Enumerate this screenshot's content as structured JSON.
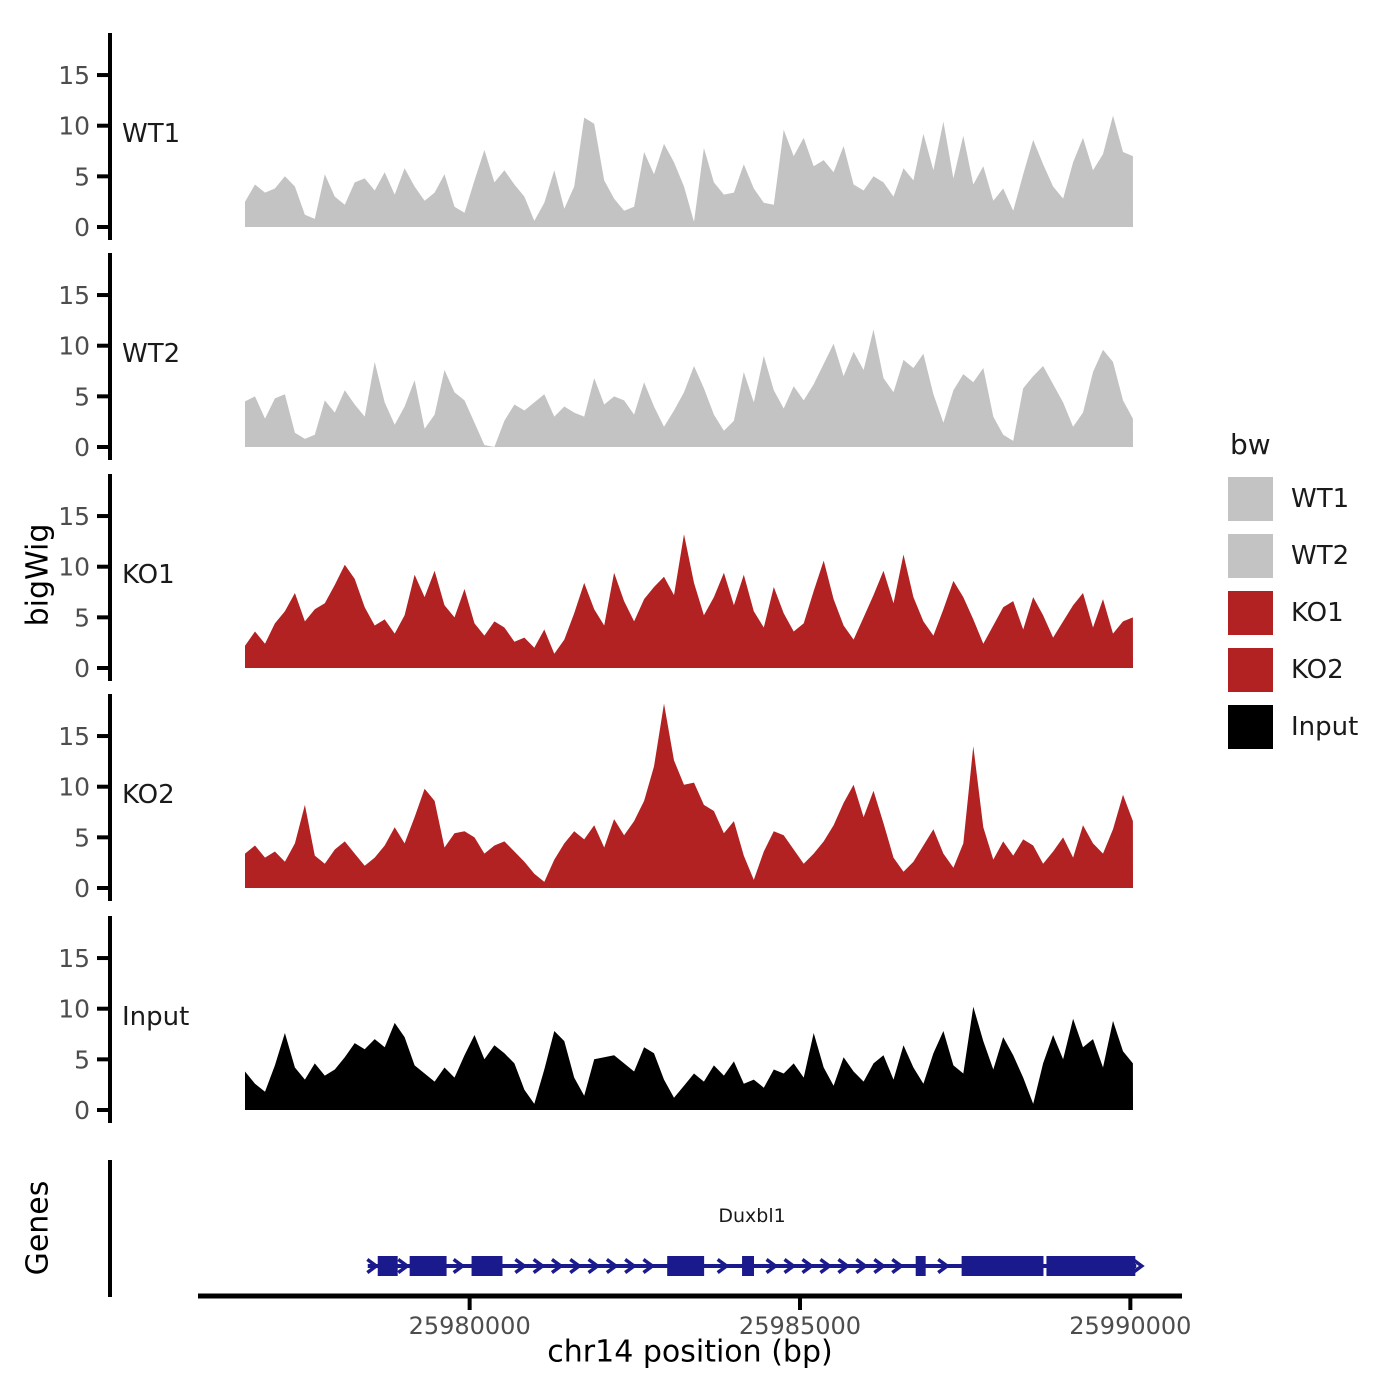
{
  "figure": {
    "y_axis_title": "bigWig",
    "genes_axis_title": "Genes",
    "x_axis_title": "chr14 position (bp)"
  },
  "colors": {
    "wt_fill": "#c3c3c3",
    "ko_fill": "#b22222",
    "input_fill": "#000000",
    "gene_fill": "#1a1a8c",
    "axis_line": "#000000",
    "tick_label": "#4d4d4d",
    "text": "#1a1a1a"
  },
  "legend": {
    "title": "bw",
    "items": [
      {
        "label": "WT1",
        "color": "#c3c3c3"
      },
      {
        "label": "WT2",
        "color": "#c3c3c3"
      },
      {
        "label": "KO1",
        "color": "#b22222"
      },
      {
        "label": "KO2",
        "color": "#b22222"
      },
      {
        "label": "Input",
        "color": "#000000"
      }
    ]
  },
  "chart_data": {
    "type": "area",
    "title": "",
    "xlabel": "chr14 position (bp)",
    "ylabel": "bigWig",
    "legend_title": "bw",
    "chrom": "chr14",
    "x_range_bp": [
      25976600,
      25990040
    ],
    "x_start": 25976600,
    "x_step": 151,
    "yticks": [
      0,
      5,
      10,
      15
    ],
    "panel_ylim": [
      -1.3,
      19.2
    ],
    "x_ticks": [
      {
        "value": 25980000,
        "label": "25980000"
      },
      {
        "value": 25985000,
        "label": "25985000"
      },
      {
        "value": 25990000,
        "label": "25990000"
      }
    ],
    "tracks": [
      {
        "name": "WT1",
        "color": "#c3c3c3",
        "values": [
          2.5,
          4.2,
          3.4,
          3.8,
          5.0,
          4.0,
          1.2,
          0.8,
          5.2,
          3.0,
          2.2,
          4.4,
          4.8,
          3.6,
          5.4,
          3.2,
          5.8,
          4.0,
          2.6,
          3.4,
          5.2,
          2.0,
          1.4,
          4.6,
          7.6,
          4.4,
          5.6,
          4.2,
          3.0,
          0.6,
          2.4,
          5.6,
          1.8,
          4.0,
          10.8,
          10.2,
          4.6,
          2.8,
          1.6,
          2.0,
          7.4,
          5.2,
          8.2,
          6.4,
          4.0,
          0.5,
          7.8,
          4.4,
          3.2,
          3.4,
          6.2,
          3.8,
          2.4,
          2.2,
          9.6,
          7.0,
          8.8,
          6.0,
          6.6,
          5.4,
          8.0,
          4.2,
          3.6,
          5.0,
          4.4,
          3.0,
          5.8,
          4.6,
          9.2,
          5.6,
          10.4,
          4.8,
          9.0,
          4.2,
          6.0,
          2.6,
          3.8,
          1.6,
          5.2,
          8.6,
          6.2,
          4.0,
          2.8,
          6.4,
          8.8,
          5.6,
          7.2,
          11.0,
          7.4,
          7.0
        ]
      },
      {
        "name": "WT2",
        "color": "#c3c3c3",
        "values": [
          4.5,
          5.0,
          2.8,
          4.8,
          5.2,
          1.4,
          0.8,
          1.2,
          4.6,
          3.4,
          5.6,
          4.2,
          3.0,
          8.4,
          4.4,
          2.2,
          4.0,
          6.6,
          1.8,
          3.2,
          7.6,
          5.4,
          4.6,
          2.4,
          0.2,
          0.0,
          2.6,
          4.2,
          3.6,
          4.4,
          5.2,
          3.0,
          4.0,
          3.4,
          3.0,
          6.8,
          4.2,
          5.0,
          4.6,
          3.2,
          6.4,
          4.0,
          2.0,
          3.6,
          5.4,
          8.0,
          5.8,
          3.2,
          1.6,
          2.6,
          7.4,
          4.4,
          9.0,
          5.6,
          3.8,
          6.0,
          4.6,
          6.2,
          8.2,
          10.2,
          7.0,
          9.4,
          7.6,
          11.6,
          6.8,
          5.4,
          8.6,
          7.8,
          9.2,
          5.2,
          2.4,
          5.6,
          7.2,
          6.4,
          7.8,
          3.0,
          1.2,
          0.6,
          5.8,
          7.0,
          8.0,
          6.2,
          4.4,
          2.0,
          3.4,
          7.4,
          9.6,
          8.4,
          4.6,
          2.8
        ]
      },
      {
        "name": "KO1",
        "color": "#b22222",
        "values": [
          2.2,
          3.6,
          2.4,
          4.4,
          5.6,
          7.4,
          4.6,
          5.8,
          6.4,
          8.2,
          10.2,
          8.8,
          6.0,
          4.2,
          4.8,
          3.4,
          5.2,
          9.2,
          7.0,
          9.6,
          6.2,
          5.0,
          7.8,
          4.4,
          3.2,
          4.6,
          4.0,
          2.6,
          3.0,
          2.0,
          3.8,
          1.4,
          2.8,
          5.4,
          8.4,
          5.8,
          4.2,
          9.4,
          6.6,
          4.6,
          6.8,
          8.0,
          9.0,
          7.2,
          13.2,
          8.4,
          5.2,
          7.0,
          9.4,
          6.2,
          9.2,
          5.6,
          4.0,
          8.0,
          5.4,
          3.6,
          4.4,
          7.6,
          10.6,
          6.8,
          4.2,
          2.8,
          5.0,
          7.2,
          9.6,
          6.4,
          11.2,
          7.0,
          4.6,
          3.2,
          5.8,
          8.6,
          7.0,
          4.8,
          2.4,
          4.2,
          6.0,
          6.6,
          3.8,
          7.0,
          5.2,
          3.0,
          4.6,
          6.2,
          7.4,
          4.0,
          6.8,
          3.4,
          4.6,
          5.0
        ]
      },
      {
        "name": "KO2",
        "color": "#b22222",
        "values": [
          3.4,
          4.2,
          3.0,
          3.6,
          2.6,
          4.4,
          8.2,
          3.2,
          2.4,
          3.8,
          4.6,
          3.4,
          2.2,
          3.0,
          4.2,
          6.0,
          4.4,
          7.0,
          9.8,
          8.6,
          4.0,
          5.4,
          5.6,
          5.0,
          3.4,
          4.2,
          4.6,
          3.6,
          2.6,
          1.4,
          0.6,
          2.8,
          4.4,
          5.6,
          4.8,
          6.2,
          4.0,
          6.8,
          5.2,
          6.6,
          8.6,
          12.0,
          18.2,
          12.6,
          10.2,
          10.4,
          8.2,
          7.6,
          5.4,
          6.6,
          3.2,
          0.8,
          3.6,
          5.6,
          5.2,
          3.8,
          2.4,
          3.4,
          4.6,
          6.2,
          8.4,
          10.2,
          7.0,
          9.6,
          6.4,
          3.0,
          1.6,
          2.6,
          4.2,
          5.8,
          3.4,
          2.0,
          4.4,
          14.0,
          6.0,
          2.8,
          4.6,
          3.2,
          4.8,
          4.2,
          2.4,
          3.6,
          5.0,
          3.0,
          6.2,
          4.4,
          3.4,
          5.8,
          9.2,
          6.6
        ]
      },
      {
        "name": "Input",
        "color": "#000000",
        "values": [
          3.8,
          2.6,
          1.8,
          4.4,
          7.6,
          4.2,
          3.0,
          4.6,
          3.4,
          4.0,
          5.2,
          6.6,
          6.0,
          7.0,
          6.2,
          8.6,
          7.2,
          4.4,
          3.6,
          2.8,
          4.2,
          3.2,
          5.4,
          7.4,
          5.0,
          6.4,
          5.6,
          4.6,
          2.0,
          0.6,
          4.0,
          7.8,
          6.8,
          3.2,
          1.4,
          5.0,
          5.2,
          5.4,
          4.6,
          3.8,
          6.2,
          5.6,
          3.0,
          1.2,
          2.4,
          3.6,
          2.8,
          4.4,
          3.4,
          4.8,
          2.6,
          3.0,
          2.2,
          4.0,
          3.6,
          4.6,
          3.2,
          7.6,
          4.2,
          2.4,
          5.2,
          3.8,
          2.8,
          4.6,
          5.4,
          3.0,
          6.4,
          4.2,
          2.6,
          5.6,
          7.8,
          4.4,
          3.6,
          10.2,
          6.8,
          4.0,
          7.2,
          5.4,
          3.2,
          0.6,
          4.6,
          7.4,
          5.0,
          9.0,
          6.2,
          7.0,
          4.2,
          8.8,
          5.8,
          4.6
        ]
      }
    ]
  },
  "genes_track": {
    "panel_label": "Genes",
    "gene": {
      "name": "Duxbl1",
      "strand": "+",
      "color": "#1a1a8c",
      "start": 25978458,
      "end": 25990090,
      "exons": [
        [
          25978609,
          25978911
        ],
        [
          25979092,
          25979651
        ],
        [
          25980029,
          25980497
        ],
        [
          25982990,
          25983549
        ],
        [
          25984123,
          25984304
        ],
        [
          25986751,
          25986902
        ],
        [
          25987446,
          25988685
        ],
        [
          25988730,
          25990075
        ]
      ]
    }
  }
}
